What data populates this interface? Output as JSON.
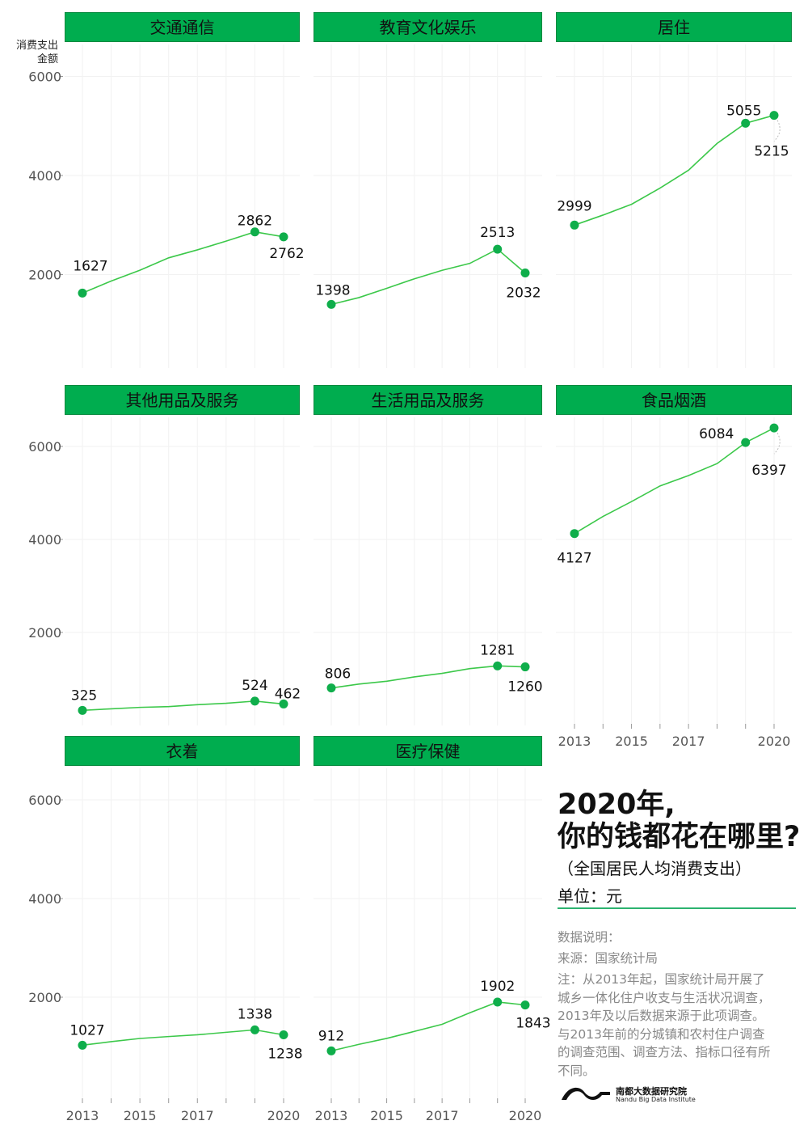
{
  "title_line1": "2020年,",
  "title_line2": "你的钱都花在哪里?",
  "subtitle": "（全国居民人均消费支出）",
  "unit": "单位：元",
  "notes": {
    "heading": "数据说明：",
    "source": "来源：国家统计局",
    "note": "注：从2013年起，国家统计局开展了城乡一体化住户收支与生活状况调查，2013年及以后数据来源于此项调查。与2013年前的分城镇和农村住户调查的调查范围、调查方法、指标口径有所不同。"
  },
  "logo": {
    "cn": "南都大数据研究院",
    "en": "Nandu Big Data Institute"
  },
  "colors": {
    "accent": "#00ad4f",
    "line": "#3cc84a",
    "point": "#0fae4b"
  },
  "chart_data": {
    "type": "line",
    "ylabel": "消费支出金额",
    "ylim": [
      0,
      6700
    ],
    "yticks": [
      2000,
      4000,
      6000
    ],
    "x": [
      2013,
      2014,
      2015,
      2016,
      2017,
      2018,
      2019,
      2020
    ],
    "xticks": [
      2013,
      2015,
      2017,
      2020
    ],
    "grid": true,
    "labeled_points": [
      2013,
      2019,
      2020
    ],
    "panels": [
      {
        "title": "交通通信",
        "values": [
          1627,
          1869,
          2087,
          2338,
          2499,
          2675,
          2862,
          2762
        ]
      },
      {
        "title": "教育文化娱乐",
        "values": [
          1398,
          1536,
          1723,
          1915,
          2086,
          2226,
          2513,
          2032
        ]
      },
      {
        "title": "居住",
        "values": [
          2999,
          3201,
          3419,
          3746,
          4107,
          4647,
          5055,
          5215
        ]
      },
      {
        "title": "其他用品及服务",
        "values": [
          325,
          358,
          389,
          406,
          447,
          477,
          524,
          462
        ]
      },
      {
        "title": "生活用品及服务",
        "values": [
          806,
          890,
          951,
          1044,
          1121,
          1223,
          1281,
          1260
        ]
      },
      {
        "title": "食品烟酒",
        "values": [
          4127,
          4494,
          4814,
          5151,
          5374,
          5631,
          6084,
          6397
        ]
      },
      {
        "title": "衣着",
        "values": [
          1027,
          1099,
          1164,
          1203,
          1238,
          1289,
          1338,
          1238
        ]
      },
      {
        "title": "医疗保健",
        "values": [
          912,
          1045,
          1165,
          1307,
          1451,
          1685,
          1902,
          1843
        ]
      }
    ]
  }
}
